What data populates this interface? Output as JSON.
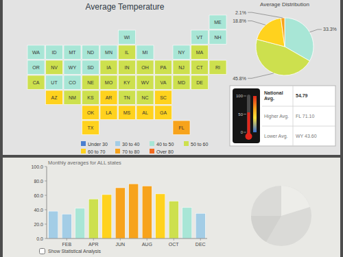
{
  "title": "Average Temperature",
  "map": {
    "states": [
      {
        "label": "ME",
        "color": "#a8e6d6"
      },
      {
        "label": "WI",
        "color": "#a8e6d6"
      },
      {
        "label": "VT",
        "color": "#a8e6d6"
      },
      {
        "label": "NH",
        "color": "#a8e6d6"
      },
      {
        "label": "WA",
        "color": "#a8e6d6"
      },
      {
        "label": "ID",
        "color": "#a8e6d6"
      },
      {
        "label": "MT",
        "color": "#a8e6d6"
      },
      {
        "label": "ND",
        "color": "#a8e6d6"
      },
      {
        "label": "MN",
        "color": "#a8e6d6"
      },
      {
        "label": "IL",
        "color": "#cde04e"
      },
      {
        "label": "MI",
        "color": "#a8e6d6"
      },
      {
        "label": "NY",
        "color": "#a8e6d6"
      },
      {
        "label": "MA",
        "color": "#cde04e"
      },
      {
        "label": "OR",
        "color": "#a8e6d6"
      },
      {
        "label": "NV",
        "color": "#cde04e"
      },
      {
        "label": "WY",
        "color": "#a8e6d6"
      },
      {
        "label": "SD",
        "color": "#a8e6d6"
      },
      {
        "label": "IA",
        "color": "#cde04e"
      },
      {
        "label": "IN",
        "color": "#cde04e"
      },
      {
        "label": "OH",
        "color": "#cde04e"
      },
      {
        "label": "PA",
        "color": "#cde04e"
      },
      {
        "label": "NJ",
        "color": "#cde04e"
      },
      {
        "label": "CT",
        "color": "#cde04e"
      },
      {
        "label": "RI",
        "color": "#cde04e"
      },
      {
        "label": "CA",
        "color": "#cde04e"
      },
      {
        "label": "UT",
        "color": "#a8e6d6"
      },
      {
        "label": "CO",
        "color": "#a8e6d6"
      },
      {
        "label": "NE",
        "color": "#cde04e"
      },
      {
        "label": "MO",
        "color": "#cde04e"
      },
      {
        "label": "KY",
        "color": "#cde04e"
      },
      {
        "label": "WV",
        "color": "#cde04e"
      },
      {
        "label": "VA",
        "color": "#cde04e"
      },
      {
        "label": "MD",
        "color": "#cde04e"
      },
      {
        "label": "DE",
        "color": "#cde04e"
      },
      {
        "label": "AZ",
        "color": "#ffd21e"
      },
      {
        "label": "NM",
        "color": "#cde04e"
      },
      {
        "label": "KS",
        "color": "#cde04e"
      },
      {
        "label": "AR",
        "color": "#ffd21e"
      },
      {
        "label": "TN",
        "color": "#cde04e"
      },
      {
        "label": "NC",
        "color": "#cde04e"
      },
      {
        "label": "SC",
        "color": "#ffd21e"
      },
      {
        "label": "OK",
        "color": "#ffd21e"
      },
      {
        "label": "LA",
        "color": "#ffd21e"
      },
      {
        "label": "MS",
        "color": "#ffd21e"
      },
      {
        "label": "AL",
        "color": "#ffd21e"
      },
      {
        "label": "GA",
        "color": "#ffd21e"
      },
      {
        "label": "TX",
        "color": "#ffd21e"
      },
      {
        "label": "FL",
        "color": "#f7a31c"
      }
    ]
  },
  "legend": [
    {
      "label": "Under 30",
      "color": "#4a7fd0"
    },
    {
      "label": "30 to 40",
      "color": "#a3cde6"
    },
    {
      "label": "40 to 50",
      "color": "#a8e6d6"
    },
    {
      "label": "50 to 60",
      "color": "#cde04e"
    },
    {
      "label": "60 to 70",
      "color": "#ffd21e"
    },
    {
      "label": "70 to 80",
      "color": "#f7a31c"
    },
    {
      "label": "Over 80",
      "color": "#f26b21"
    }
  ],
  "chart_data": [
    {
      "type": "pie",
      "title": "Average Distribution",
      "values": [
        33.3,
        45.8,
        18.8,
        2.1
      ],
      "value_labels": [
        "33.3%",
        "45.8%",
        "18.8%",
        "2.1%"
      ],
      "colors": [
        "#a8e6d6",
        "#cde04e",
        "#ffd21e",
        "#f7a31c"
      ],
      "data_labels": true
    },
    {
      "type": "bar",
      "title": "Monthly averages for ALL states",
      "categories": [
        null,
        "FEB",
        null,
        "APR",
        null,
        "JUN",
        null,
        "AUG",
        null,
        "OCT",
        null,
        "DEC"
      ],
      "values": [
        38,
        34,
        42,
        55,
        61,
        70.5,
        76,
        73,
        62,
        52,
        43,
        35
      ],
      "colors": [
        "#a3cde6",
        "#a3cde6",
        "#a8e6d6",
        "#cde04e",
        "#ffd21e",
        "#f7a31c",
        "#f7a31c",
        "#f7a31c",
        "#ffd21e",
        "#cde04e",
        "#a8e6d6",
        "#a3cde6"
      ],
      "ylim": [
        0,
        100
      ],
      "yticks": [
        {
          "value": 0,
          "label": "0.0"
        },
        {
          "value": 20,
          "label": "20.0"
        },
        {
          "value": 40,
          "label": "40.0"
        },
        {
          "value": 60,
          "label": "60.0"
        },
        {
          "value": 80,
          "label": "80.0"
        },
        {
          "value": 100,
          "label": "100.0"
        }
      ],
      "grid": false
    }
  ],
  "gauge": {
    "ylim": [
      0,
      100
    ],
    "yticks": [
      0,
      50,
      100
    ],
    "label": "National Avg.",
    "value": 54.79,
    "rows": [
      {
        "label": "Higher Avg.",
        "value": "FL 71.10"
      },
      {
        "label": "Lower Avg.",
        "value": "WY 43.60"
      }
    ]
  },
  "checkbox": {
    "label": "Show Statistical Analysis",
    "checked": false
  }
}
